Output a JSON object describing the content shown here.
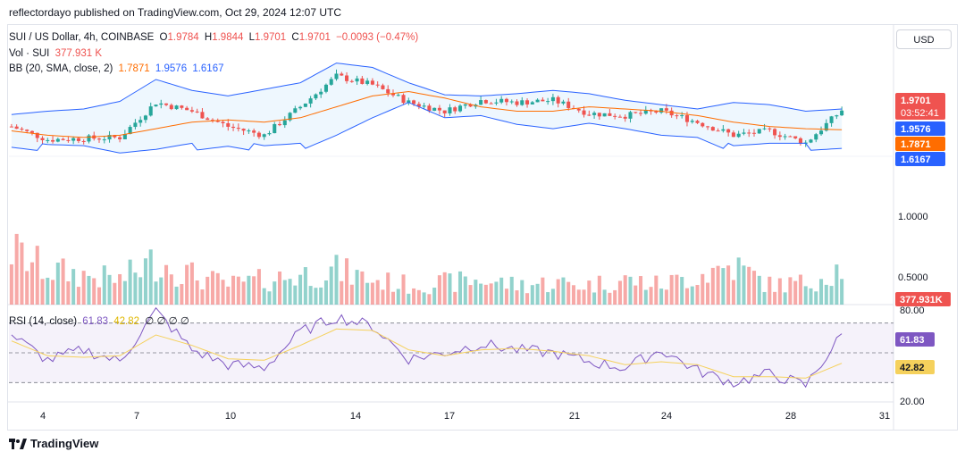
{
  "header": {
    "text": "reflectordayo published on TradingView.com, Oct 29, 2024 12:07 UTC"
  },
  "legend": {
    "main": {
      "symbol": "SUI / US Dollar, 4h, COINBASE",
      "o_label": "O",
      "o": "1.9784",
      "h_label": "H",
      "h": "1.9844",
      "l_label": "L",
      "l": "1.9701",
      "c_label": "C",
      "c": "1.9701",
      "chg": "−0.0093 (−0.47%)"
    },
    "vol": {
      "label": "Vol · SUI",
      "value": "377.931 K"
    },
    "bb": {
      "label": "BB (20, SMA, close, 2)",
      "basis": "1.7871",
      "upper": "1.9576",
      "lower": "1.6167"
    },
    "rsi": {
      "label": "RSI (14, close)",
      "rsi": "61.83",
      "ma": "42.82",
      "extra": "∅ ∅ ∅ ∅"
    }
  },
  "currency": "USD",
  "footer": {
    "brand": "TradingView"
  },
  "colors": {
    "up": "#26a69a",
    "down": "#ef5350",
    "bb_basis": "#ff6d00",
    "bb_band": "#2962ff",
    "rsi": "#7e57c2",
    "rsi_ma": "#f5d15c"
  },
  "chart_data": [
    {
      "type": "candlestick",
      "title": "SUI / US Dollar, 4h, COINBASE",
      "x_ticks": [
        "4",
        "7",
        "10",
        "14",
        "17",
        "21",
        "24",
        "28",
        "31"
      ],
      "y_ticks": [
        "1.0000",
        "0.5000"
      ],
      "y_range": [
        0.3,
        2.5
      ],
      "current": {
        "price": "1.9701",
        "countdown": "03:52:41"
      },
      "price_labels": [
        {
          "text": "1.9701",
          "color": "#ef5350"
        },
        {
          "text": "1.9576",
          "color": "#2962ff"
        },
        {
          "text": "1.7871",
          "color": "#ff6d00"
        },
        {
          "text": "1.6167",
          "color": "#2962ff"
        }
      ],
      "volume_label": "377.931K",
      "bb_basis_keypoints": [
        1.78,
        1.74,
        1.72,
        1.74,
        1.8,
        1.86,
        1.88,
        1.86,
        1.9,
        2.0,
        2.1,
        2.14,
        2.08,
        2.0,
        1.96,
        1.96,
        2.0,
        1.98,
        1.96,
        1.92,
        1.86,
        1.82,
        1.8,
        1.79
      ],
      "bb_upper_keypoints": [
        1.93,
        1.96,
        1.98,
        2.05,
        2.25,
        2.15,
        2.1,
        2.16,
        2.22,
        2.4,
        2.36,
        2.22,
        2.11,
        2.1,
        2.12,
        2.15,
        2.12,
        2.06,
        2.02,
        1.98,
        2.04,
        2.02,
        1.96,
        1.98
      ],
      "bb_lower_keypoints": [
        1.63,
        1.59,
        1.58,
        1.52,
        1.55,
        1.6,
        1.64,
        1.58,
        1.6,
        1.74,
        1.9,
        2.04,
        1.9,
        1.92,
        1.84,
        1.8,
        1.85,
        1.8,
        1.74,
        1.72,
        1.58,
        1.6,
        1.6,
        1.62
      ],
      "close_keypoints": [
        1.82,
        1.7,
        1.71,
        1.72,
        2.04,
        1.96,
        1.82,
        1.74,
        2.0,
        2.28,
        2.2,
        2.04,
        1.96,
        2.06,
        2.04,
        2.06,
        1.94,
        1.92,
        1.96,
        1.86,
        1.74,
        1.78,
        1.67,
        1.97
      ],
      "volume_keypoints": [
        0.55,
        0.35,
        0.3,
        0.25,
        0.45,
        0.3,
        0.2,
        0.25,
        0.3,
        0.35,
        0.25,
        0.2,
        0.22,
        0.25,
        0.2,
        0.22,
        0.2,
        0.25,
        0.2,
        0.3,
        0.4,
        0.2,
        0.22,
        0.38
      ]
    },
    {
      "type": "line",
      "title": "RSI (14, close)",
      "y_ticks": [
        "80.00",
        "20.00"
      ],
      "y_range": [
        20,
        80
      ],
      "bands": [
        70,
        50,
        30
      ],
      "labels": [
        {
          "text": "61.83",
          "color": "#7e57c2"
        },
        {
          "text": "42.82",
          "color": "#f5d15c"
        }
      ],
      "series": [
        {
          "name": "RSI",
          "keypoints": [
            62,
            45,
            52,
            44,
            78,
            52,
            42,
            40,
            64,
            74,
            68,
            46,
            50,
            56,
            52,
            50,
            44,
            40,
            52,
            38,
            30,
            36,
            28,
            62
          ]
        },
        {
          "name": "MA",
          "keypoints": [
            58,
            48,
            47,
            48,
            62,
            55,
            46,
            45,
            55,
            66,
            65,
            52,
            48,
            52,
            53,
            51,
            48,
            42,
            44,
            42,
            34,
            34,
            33,
            43
          ]
        }
      ]
    }
  ]
}
